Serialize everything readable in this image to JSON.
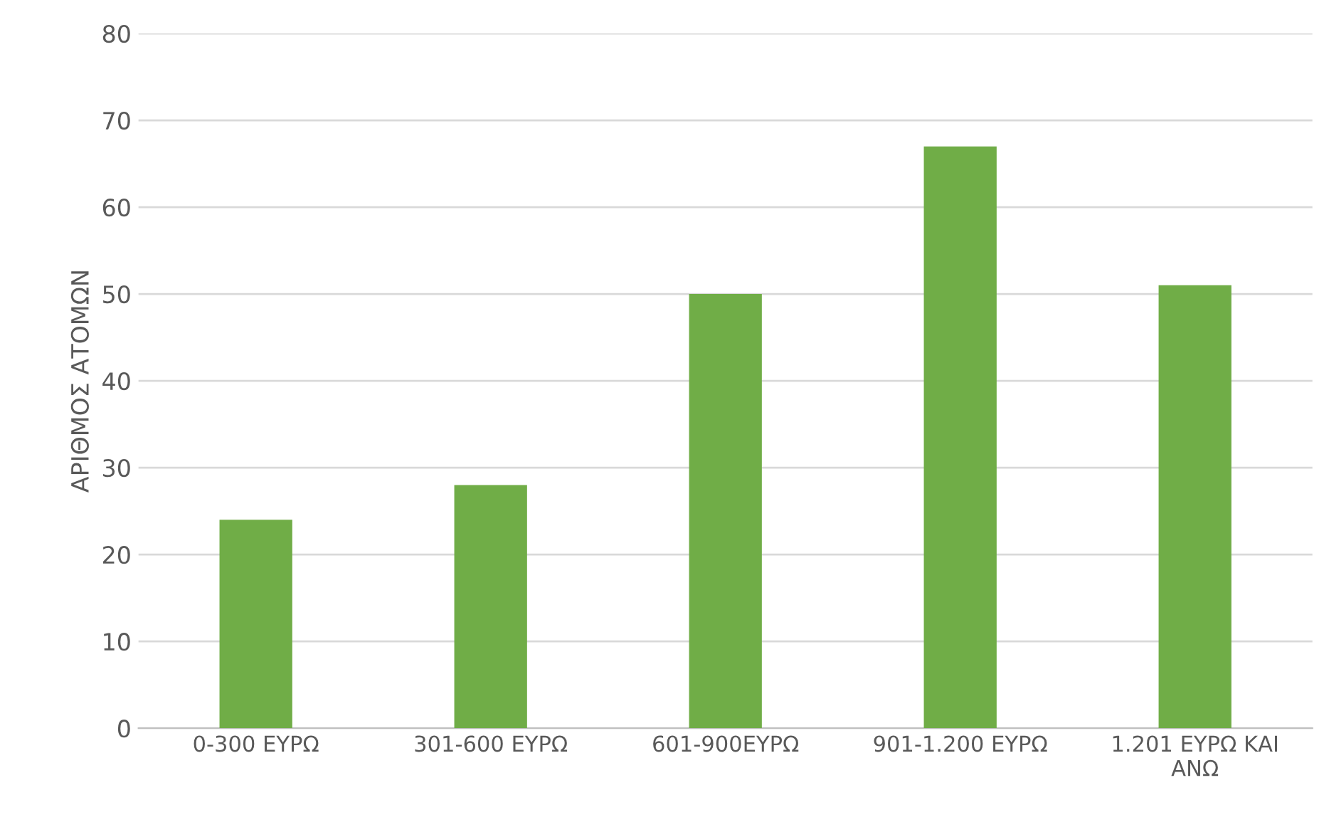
{
  "chart_data": {
    "type": "bar",
    "ylabel": "ΑΡΙΘΜΟΣ ΑΤΟΜΩΝ",
    "categories": [
      "0-300 ΕΥΡΩ",
      "301-600 ΕΥΡΩ",
      "601-900ΕΥΡΩ",
      "901-1.200 ΕΥΡΩ",
      "1.201 ΕΥΡΩ ΚΑΙ\nΑΝΩ"
    ],
    "values": [
      24,
      28,
      50,
      67,
      51
    ],
    "color": "#70ad47",
    "ylim": [
      0,
      80
    ],
    "yticks": [
      0,
      10,
      20,
      30,
      40,
      50,
      60,
      70,
      80
    ],
    "grid": "y"
  }
}
